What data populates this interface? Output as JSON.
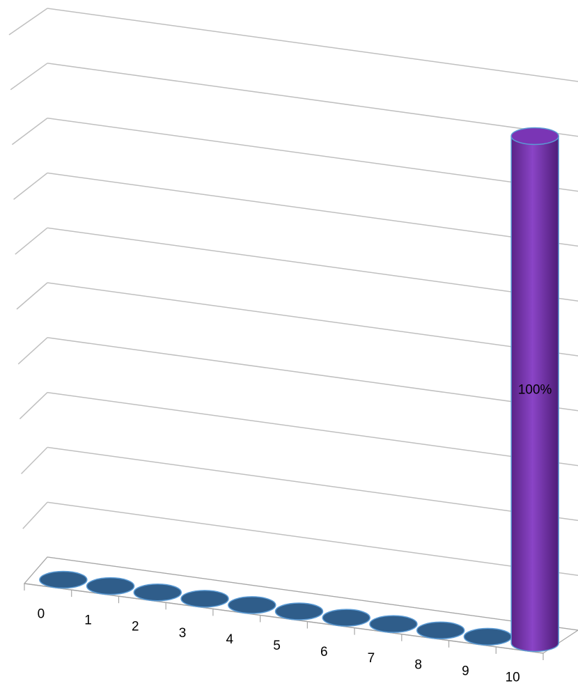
{
  "chart_data": {
    "type": "bar",
    "style": "3d-cylinder",
    "categories": [
      "0",
      "1",
      "2",
      "3",
      "4",
      "5",
      "6",
      "7",
      "8",
      "9",
      "10"
    ],
    "values": [
      0,
      0,
      0,
      0,
      0,
      0,
      0,
      0,
      0,
      0,
      100
    ],
    "value_unit": "%",
    "data_labels": [
      "",
      "",
      "",
      "",
      "",
      "",
      "",
      "",
      "",
      "",
      "100%"
    ],
    "ylim": [
      0,
      100
    ],
    "grid": true,
    "legend": "none",
    "colors": {
      "bar": "#2f5d8a",
      "bar_highlight": "#7a35b5",
      "bar_outline": "#5b9bd5",
      "gridline": "#bfbfbf",
      "axis": "#a6a6a6",
      "text": "#000000"
    }
  }
}
